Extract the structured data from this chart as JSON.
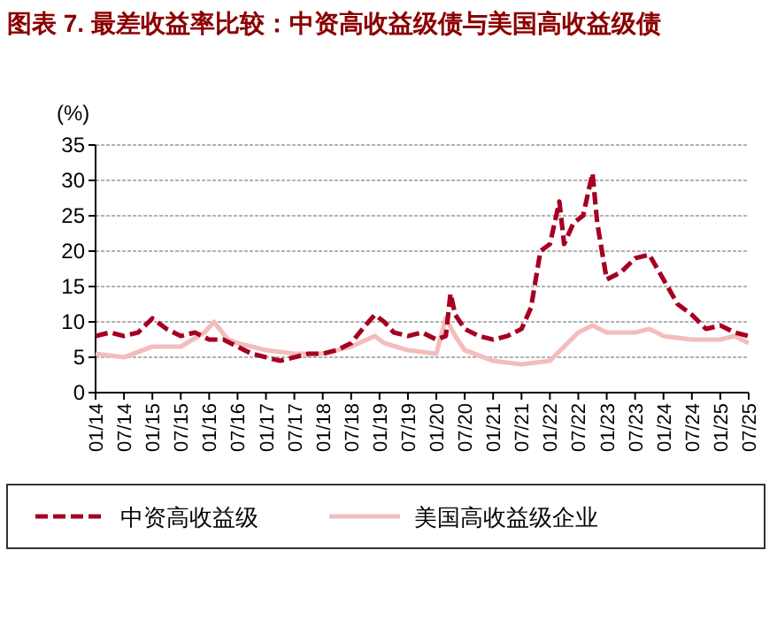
{
  "chart_data": {
    "type": "line",
    "title": "图表 7. 最差收益率比较：中资高收益级债与美国高收益级债",
    "ylabel": "(%)",
    "xlim": [
      "2014-01",
      "2025-07"
    ],
    "xticks": [
      {
        "value": "2014-01",
        "label": "01/14"
      },
      {
        "value": "2014-07",
        "label": "07/14"
      },
      {
        "value": "2015-01",
        "label": "01/15"
      },
      {
        "value": "2015-07",
        "label": "07/15"
      },
      {
        "value": "2016-01",
        "label": "01/16"
      },
      {
        "value": "2016-07",
        "label": "07/16"
      },
      {
        "value": "2017-01",
        "label": "01/17"
      },
      {
        "value": "2017-07",
        "label": "07/17"
      },
      {
        "value": "2018-01",
        "label": "01/18"
      },
      {
        "value": "2018-07",
        "label": "07/18"
      },
      {
        "value": "2019-01",
        "label": "01/19"
      },
      {
        "value": "2019-07",
        "label": "07/19"
      },
      {
        "value": "2020-01",
        "label": "01/20"
      },
      {
        "value": "2020-07",
        "label": "07/20"
      },
      {
        "value": "2021-01",
        "label": "01/21"
      },
      {
        "value": "2021-07",
        "label": "07/21"
      },
      {
        "value": "2022-01",
        "label": "01/22"
      },
      {
        "value": "2022-07",
        "label": "07/22"
      },
      {
        "value": "2023-01",
        "label": "01/23"
      },
      {
        "value": "2023-07",
        "label": "07/23"
      },
      {
        "value": "2024-01",
        "label": "01/24"
      },
      {
        "value": "2024-07",
        "label": "07/24"
      },
      {
        "value": "2025-01",
        "label": "01/25"
      },
      {
        "value": "2025-07",
        "label": "07/25"
      }
    ],
    "ylim": [
      0,
      35
    ],
    "yticks": [
      0,
      5,
      10,
      15,
      20,
      25,
      30,
      35
    ],
    "grid": "y",
    "legend": "bottom",
    "series": [
      {
        "name": "中资高收益级",
        "color": "#a50021",
        "line_style": "dashed",
        "x": [
          "2014-01",
          "2014-04",
          "2014-07",
          "2014-10",
          "2015-01",
          "2015-04",
          "2015-07",
          "2015-10",
          "2016-01",
          "2016-04",
          "2016-07",
          "2016-10",
          "2017-01",
          "2017-04",
          "2017-07",
          "2017-10",
          "2018-01",
          "2018-04",
          "2018-07",
          "2018-10",
          "2018-12",
          "2019-02",
          "2019-04",
          "2019-07",
          "2019-10",
          "2020-01",
          "2020-03",
          "2020-04",
          "2020-05",
          "2020-07",
          "2020-10",
          "2021-01",
          "2021-04",
          "2021-07",
          "2021-09",
          "2021-11",
          "2022-01",
          "2022-03",
          "2022-04",
          "2022-06",
          "2022-08",
          "2022-10",
          "2022-11",
          "2023-01",
          "2023-04",
          "2023-07",
          "2023-10",
          "2024-01",
          "2024-04",
          "2024-07",
          "2024-10",
          "2025-01",
          "2025-04",
          "2025-07"
        ],
        "values": [
          8,
          8.5,
          8,
          8.5,
          10.5,
          9,
          8,
          8.5,
          7.5,
          7.5,
          6.5,
          5.5,
          5,
          4.5,
          5,
          5.5,
          5.5,
          6,
          7,
          9.5,
          11,
          10,
          8.5,
          8,
          8.5,
          7.5,
          8,
          14,
          11,
          9,
          8,
          7.5,
          8,
          9,
          12,
          20,
          21,
          27,
          21,
          24,
          25,
          31,
          24,
          16,
          17,
          19,
          19.5,
          16,
          12.5,
          11,
          9,
          9.5,
          8.5,
          8
        ]
      },
      {
        "name": "美国高收益级企业",
        "color": "#f4bcbc",
        "line_style": "solid",
        "x": [
          "2014-01",
          "2014-07",
          "2015-01",
          "2015-07",
          "2015-12",
          "2016-02",
          "2016-05",
          "2016-07",
          "2017-01",
          "2017-07",
          "2018-01",
          "2018-07",
          "2018-12",
          "2019-02",
          "2019-07",
          "2020-01",
          "2020-03",
          "2020-05",
          "2020-07",
          "2021-01",
          "2021-07",
          "2022-01",
          "2022-07",
          "2022-10",
          "2023-01",
          "2023-07",
          "2023-10",
          "2024-01",
          "2024-07",
          "2025-01",
          "2025-04",
          "2025-07"
        ],
        "values": [
          5.5,
          5,
          6.5,
          6.5,
          8.5,
          10,
          7.5,
          7,
          6,
          5.5,
          5.5,
          6.5,
          8,
          7,
          6,
          5.5,
          10.5,
          8,
          6,
          4.5,
          4,
          4.5,
          8.5,
          9.5,
          8.5,
          8.5,
          9,
          8,
          7.5,
          7.5,
          8,
          7
        ]
      }
    ]
  }
}
